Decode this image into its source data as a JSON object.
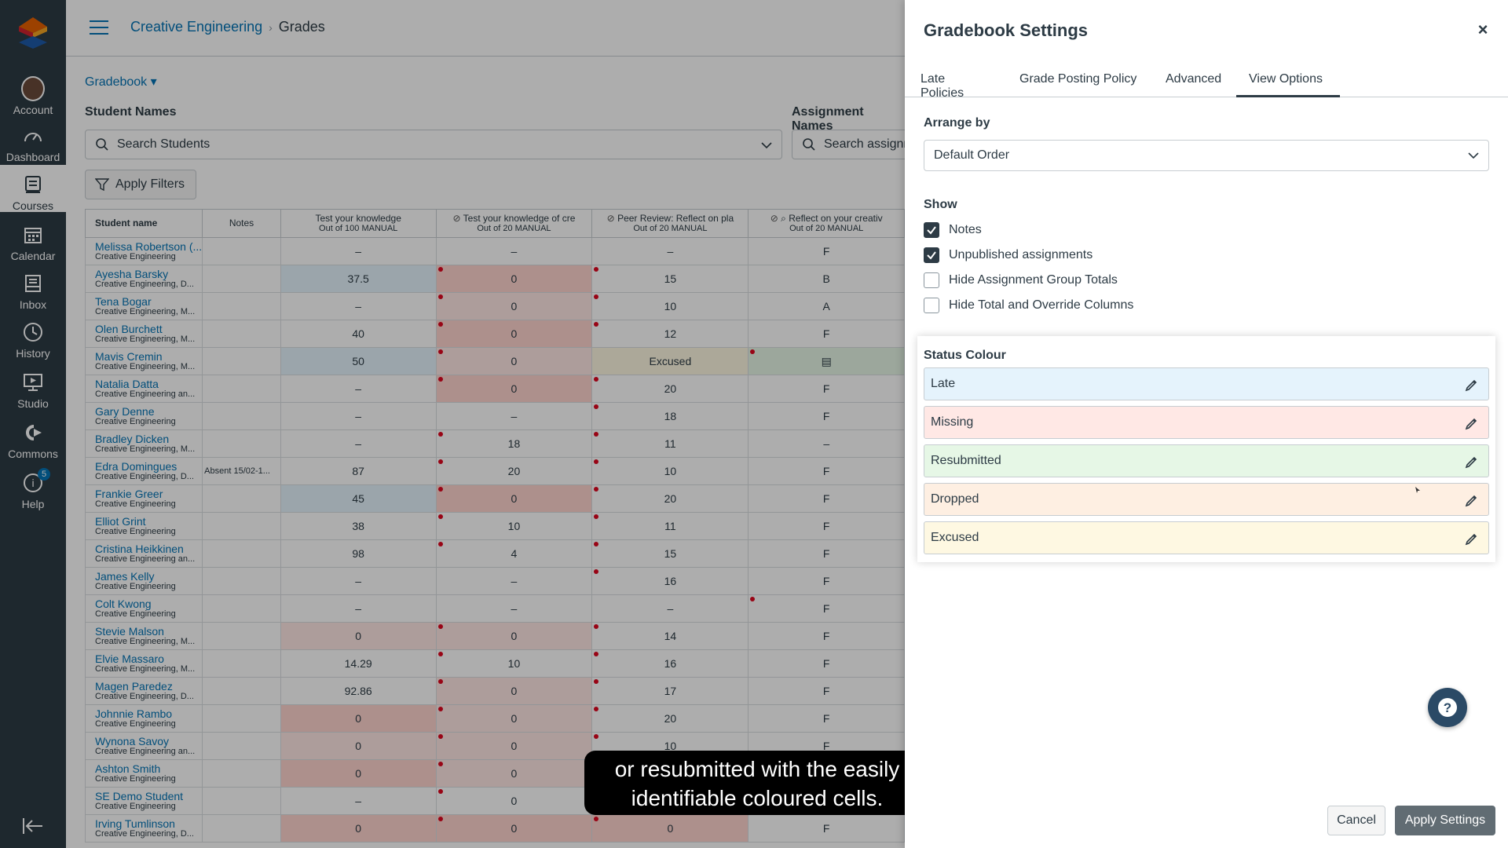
{
  "nav": {
    "items": [
      {
        "label": "Account",
        "icon": "avatar"
      },
      {
        "label": "Dashboard",
        "icon": "dashboard-icon"
      },
      {
        "label": "Courses",
        "icon": "courses-icon"
      },
      {
        "label": "Calendar",
        "icon": "calendar-icon"
      },
      {
        "label": "Inbox",
        "icon": "inbox-icon"
      },
      {
        "label": "History",
        "icon": "history-icon"
      },
      {
        "label": "Studio",
        "icon": "studio-icon"
      },
      {
        "label": "Commons",
        "icon": "commons-icon"
      },
      {
        "label": "Help",
        "icon": "help-icon",
        "badge": "5"
      }
    ],
    "active": "Courses"
  },
  "breadcrumb": {
    "course": "Creative Engineering",
    "page": "Grades"
  },
  "gradebook_menu": "Gradebook ▾",
  "filters": {
    "student_names_label": "Student Names",
    "student_search_placeholder": "Search Students",
    "assignment_names_label": "Assignment Names",
    "assignment_search_placeholder": "Search assignm",
    "apply_filters": "Apply Filters"
  },
  "grid": {
    "headers": [
      {
        "title": "Student name",
        "sub": ""
      },
      {
        "title": "Notes",
        "sub": ""
      },
      {
        "title": "Test your knowledge",
        "sub": "Out of 100 MANUAL"
      },
      {
        "title": "Test your knowledge of cre",
        "sub": "Out of 20 MANUAL"
      },
      {
        "title": "Peer Review: Reflect on pla",
        "sub": "Out of 20 MANUAL"
      },
      {
        "title": "Reflect on your creativ",
        "sub": "Out of 20 MANUAL"
      }
    ],
    "rows": [
      {
        "name": "Melissa Robertson (...",
        "section": "Creative Engineering",
        "note": "",
        "c1": "–",
        "c2": "–",
        "c3": "–",
        "c4": "F"
      },
      {
        "name": "Ayesha Barsky",
        "section": "Creative Engineering, D...",
        "note": "",
        "c1": "37.5",
        "c2": "0",
        "c3": "15",
        "c4": "B"
      },
      {
        "name": "Tena Bogar",
        "section": "Creative Engineering, M...",
        "note": "",
        "c1": "–",
        "c2": "0",
        "c3": "10",
        "c4": "A"
      },
      {
        "name": "Olen Burchett",
        "section": "Creative Engineering, M...",
        "note": "",
        "c1": "40",
        "c2": "0",
        "c3": "12",
        "c4": "F"
      },
      {
        "name": "Mavis Cremin",
        "section": "Creative Engineering, M...",
        "note": "",
        "c1": "50",
        "c2": "0",
        "c3": "Excused",
        "c4": ""
      },
      {
        "name": "Natalia Datta",
        "section": "Creative Engineering an...",
        "note": "",
        "c1": "–",
        "c2": "0",
        "c3": "20",
        "c4": "F"
      },
      {
        "name": "Gary Denne",
        "section": "Creative Engineering",
        "note": "",
        "c1": "–",
        "c2": "–",
        "c3": "18",
        "c4": "F"
      },
      {
        "name": "Bradley Dicken",
        "section": "Creative Engineering, M...",
        "note": "",
        "c1": "–",
        "c2": "18",
        "c3": "11",
        "c4": "–"
      },
      {
        "name": "Edra Domingues",
        "section": "Creative Engineering, D...",
        "note": "Absent 15/02-1...",
        "c1": "87",
        "c2": "20",
        "c3": "10",
        "c4": "F"
      },
      {
        "name": "Frankie Greer",
        "section": "Creative Engineering",
        "note": "",
        "c1": "45",
        "c2": "0",
        "c3": "20",
        "c4": "F"
      },
      {
        "name": "Elliot Grint",
        "section": "Creative Engineering",
        "note": "",
        "c1": "38",
        "c2": "10",
        "c3": "11",
        "c4": "F"
      },
      {
        "name": "Cristina Heikkinen",
        "section": "Creative Engineering an...",
        "note": "",
        "c1": "98",
        "c2": "4",
        "c3": "15",
        "c4": "F"
      },
      {
        "name": "James Kelly",
        "section": "Creative Engineering",
        "note": "",
        "c1": "–",
        "c2": "–",
        "c3": "16",
        "c4": "F"
      },
      {
        "name": "Colt Kwong",
        "section": "Creative Engineering",
        "note": "",
        "c1": "–",
        "c2": "–",
        "c3": "–",
        "c4": "F"
      },
      {
        "name": "Stevie Malson",
        "section": "Creative Engineering, M...",
        "note": "",
        "c1": "0",
        "c2": "0",
        "c3": "14",
        "c4": "F"
      },
      {
        "name": "Elvie Massaro",
        "section": "Creative Engineering, M...",
        "note": "",
        "c1": "14.29",
        "c2": "10",
        "c3": "16",
        "c4": "F"
      },
      {
        "name": "Magen Paredez",
        "section": "Creative Engineering, D...",
        "note": "",
        "c1": "92.86",
        "c2": "0",
        "c3": "17",
        "c4": "F"
      },
      {
        "name": "Johnnie Rambo",
        "section": "Creative Engineering",
        "note": "",
        "c1": "0",
        "c2": "0",
        "c3": "20",
        "c4": "F"
      },
      {
        "name": "Wynona Savoy",
        "section": "Creative Engineering an...",
        "note": "",
        "c1": "0",
        "c2": "0",
        "c3": "10",
        "c4": "F"
      },
      {
        "name": "Ashton Smith",
        "section": "Creative Engineering",
        "note": "",
        "c1": "0",
        "c2": "0",
        "c3": "",
        "c4": ""
      },
      {
        "name": "SE Demo Student",
        "section": "Creative Engineering",
        "note": "",
        "c1": "–",
        "c2": "0",
        "c3": "",
        "c4": ""
      },
      {
        "name": "Irving Tumlinson",
        "section": "Creative Engineering, D...",
        "note": "",
        "c1": "0",
        "c2": "0",
        "c3": "0",
        "c4": "F"
      }
    ]
  },
  "tray": {
    "title": "Gradebook Settings",
    "close": "×",
    "tabs": [
      "Late Policies",
      "Grade Posting Policy",
      "Advanced",
      "View Options"
    ],
    "active_tab": "View Options",
    "arrange_by_label": "Arrange by",
    "arrange_by_value": "Default Order",
    "show_label": "Show",
    "checkboxes": [
      {
        "label": "Notes",
        "checked": true
      },
      {
        "label": "Unpublished assignments",
        "checked": true
      },
      {
        "label": "Hide Assignment Group Totals",
        "checked": false
      },
      {
        "label": "Hide Total and Override Columns",
        "checked": false
      }
    ],
    "status_colour_label": "Status Colour",
    "statuses": [
      {
        "label": "Late",
        "color": "#e5f3fc"
      },
      {
        "label": "Missing",
        "color": "#ffe8e5"
      },
      {
        "label": "Resubmitted",
        "color": "#e6f7e6"
      },
      {
        "label": "Dropped",
        "color": "#feefe2"
      },
      {
        "label": "Excused",
        "color": "#fef8e2"
      }
    ],
    "cancel": "Cancel",
    "apply": "Apply Settings"
  },
  "caption": {
    "line1": "or resubmitted with the easily",
    "line2": "identifiable coloured cells."
  },
  "colors": {
    "nav_bg": "#2d3b45",
    "link": "#0374b5",
    "missing_dot": "#e0061f"
  }
}
